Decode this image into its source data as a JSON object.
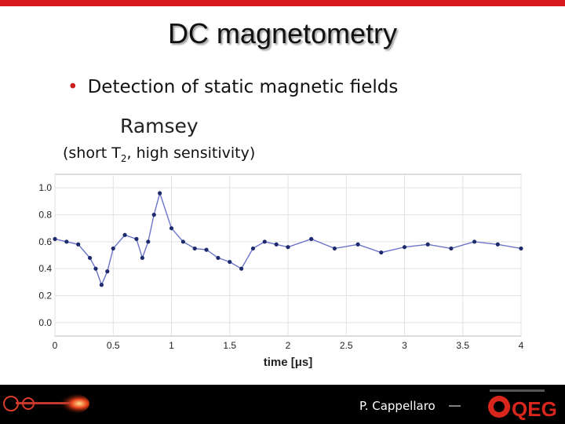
{
  "slide": {
    "title": "DC magnetometry",
    "bullet": "Detection of static magnetic fields",
    "method": "Ramsey",
    "caption_pre": "(short T",
    "caption_sub": "2",
    "caption_post": ", high sensitivity)"
  },
  "footer": {
    "author": "P. Cappellaro",
    "dash": "—",
    "logo_text": "QEG"
  },
  "colors": {
    "accent": "#d71920",
    "series": "#1e2a6e",
    "series_line": "#6a74c8"
  },
  "chart_data": {
    "type": "scatter",
    "xlabel": "time [μs]",
    "ylabel": "",
    "xlim": [
      0,
      4
    ],
    "ylim": [
      -0.1,
      1.1
    ],
    "xticks": [
      "0",
      "0.5",
      "1",
      "1.5",
      "2",
      "2.5",
      "3",
      "3.5",
      "4"
    ],
    "yticks": [
      "0.0",
      "0.2",
      "0.4",
      "0.6",
      "0.8",
      "1.0"
    ],
    "grid": true,
    "connected": true,
    "series": [
      {
        "x": [
          0.0,
          0.1,
          0.2,
          0.3,
          0.35,
          0.4,
          0.45,
          0.5,
          0.6,
          0.7,
          0.75,
          0.8,
          0.85,
          0.9,
          1.0,
          1.1,
          1.2,
          1.3,
          1.4,
          1.5,
          1.6,
          1.7,
          1.8,
          1.9,
          2.0,
          2.2,
          2.4,
          2.6,
          2.8,
          3.0,
          3.2,
          3.4,
          3.6,
          3.8,
          4.0
        ],
        "y": [
          0.62,
          0.6,
          0.58,
          0.48,
          0.4,
          0.28,
          0.38,
          0.55,
          0.65,
          0.62,
          0.48,
          0.6,
          0.8,
          0.96,
          0.7,
          0.6,
          0.55,
          0.54,
          0.48,
          0.45,
          0.4,
          0.55,
          0.6,
          0.58,
          0.56,
          0.62,
          0.55,
          0.58,
          0.52,
          0.56,
          0.58,
          0.55,
          0.6,
          0.58,
          0.55
        ]
      }
    ]
  }
}
